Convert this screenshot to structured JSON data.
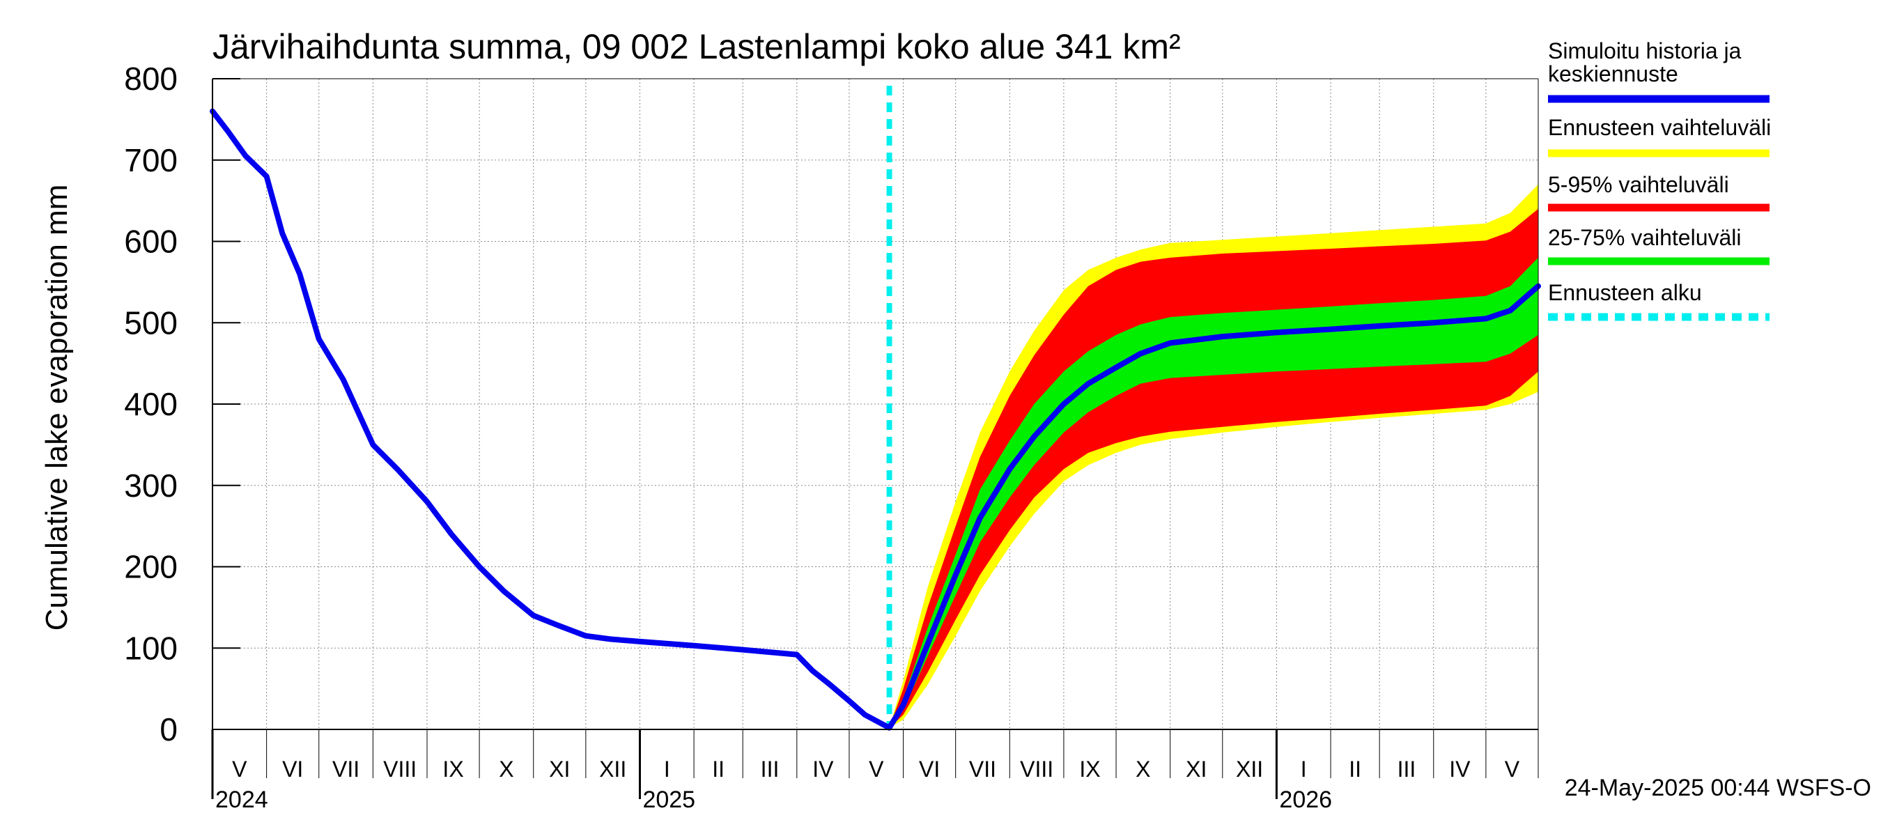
{
  "chart_data": {
    "type": "area",
    "title": "Järvihaihdunta summa, 09 002 Lastenlampi koko alue 341 km²",
    "ylabel": "Cumulative lake evaporation   mm",
    "xlabel": "",
    "ylim": [
      0,
      800
    ],
    "yticks": [
      0,
      100,
      200,
      300,
      400,
      500,
      600,
      700,
      800
    ],
    "grid": true,
    "timestamp": "24-May-2025 00:44 WSFS-O",
    "x_range": [
      "2024-05-01",
      "2026-05-31"
    ],
    "forecast_start": "2025-05-24",
    "month_labels": [
      {
        "label": "V",
        "date": "2024-05-01"
      },
      {
        "label": "VI",
        "date": "2024-06-01"
      },
      {
        "label": "VII",
        "date": "2024-07-01"
      },
      {
        "label": "VIII",
        "date": "2024-08-01"
      },
      {
        "label": "IX",
        "date": "2024-09-01"
      },
      {
        "label": "X",
        "date": "2024-10-01"
      },
      {
        "label": "XI",
        "date": "2024-11-01"
      },
      {
        "label": "XII",
        "date": "2024-12-01"
      },
      {
        "label": "I",
        "date": "2025-01-01"
      },
      {
        "label": "II",
        "date": "2025-02-01"
      },
      {
        "label": "III",
        "date": "2025-03-01"
      },
      {
        "label": "IV",
        "date": "2025-04-01"
      },
      {
        "label": "V",
        "date": "2025-05-01"
      },
      {
        "label": "VI",
        "date": "2025-06-01"
      },
      {
        "label": "VII",
        "date": "2025-07-01"
      },
      {
        "label": "VIII",
        "date": "2025-08-01"
      },
      {
        "label": "IX",
        "date": "2025-09-01"
      },
      {
        "label": "X",
        "date": "2025-10-01"
      },
      {
        "label": "XI",
        "date": "2025-11-01"
      },
      {
        "label": "XII",
        "date": "2025-12-01"
      },
      {
        "label": "I",
        "date": "2026-01-01"
      },
      {
        "label": "II",
        "date": "2026-02-01"
      },
      {
        "label": "III",
        "date": "2026-03-01"
      },
      {
        "label": "IV",
        "date": "2026-04-01"
      },
      {
        "label": "V",
        "date": "2026-05-01"
      }
    ],
    "year_labels": [
      {
        "label": "2024",
        "date": "2024-05-01"
      },
      {
        "label": "2025",
        "date": "2025-01-01"
      },
      {
        "label": "2026",
        "date": "2026-01-01"
      }
    ],
    "legend": [
      {
        "label": "Simuloitu historia ja",
        "label2": "keskiennuste",
        "color": "#0000ee",
        "style": "solid"
      },
      {
        "label": "Ennusteen vaihteluväli",
        "color": "#ffff00",
        "style": "solid"
      },
      {
        "label": "5-95% vaihteluväli",
        "color": "#ff0000",
        "style": "solid"
      },
      {
        "label": "25-75% vaihteluväli",
        "color": "#00ee00",
        "style": "solid"
      },
      {
        "label": "Ennusteen alku",
        "color": "#00eeee",
        "style": "dashed"
      }
    ],
    "history": {
      "x": [
        "2024-05-01",
        "2024-05-10",
        "2024-05-20",
        "2024-06-01",
        "2024-06-10",
        "2024-06-20",
        "2024-07-01",
        "2024-07-15",
        "2024-08-01",
        "2024-08-15",
        "2024-09-01",
        "2024-09-15",
        "2024-10-01",
        "2024-10-15",
        "2024-11-01",
        "2024-11-15",
        "2024-12-01",
        "2024-12-15",
        "2025-01-01",
        "2025-02-01",
        "2025-03-01",
        "2025-04-01",
        "2025-04-10",
        "2025-04-20",
        "2025-05-01",
        "2025-05-10",
        "2025-05-24"
      ],
      "values": [
        760,
        735,
        705,
        680,
        610,
        560,
        480,
        430,
        350,
        320,
        280,
        240,
        200,
        170,
        140,
        128,
        115,
        111,
        108,
        103,
        98,
        92,
        72,
        55,
        35,
        18,
        2
      ]
    },
    "bands": {
      "x": [
        "2025-05-24",
        "2025-06-01",
        "2025-06-15",
        "2025-07-01",
        "2025-07-15",
        "2025-08-01",
        "2025-08-15",
        "2025-09-01",
        "2025-09-15",
        "2025-10-01",
        "2025-10-15",
        "2025-11-01",
        "2025-12-01",
        "2026-01-01",
        "2026-02-01",
        "2026-03-01",
        "2026-04-01",
        "2026-05-01",
        "2026-05-15",
        "2026-05-31"
      ],
      "mean": [
        2,
        30,
        105,
        190,
        260,
        320,
        360,
        400,
        425,
        445,
        462,
        475,
        483,
        488,
        492,
        496,
        500,
        505,
        515,
        545
      ],
      "p25": [
        2,
        24,
        90,
        165,
        230,
        285,
        325,
        365,
        390,
        410,
        425,
        432,
        436,
        440,
        443,
        446,
        449,
        452,
        462,
        485
      ],
      "p75": [
        2,
        38,
        125,
        215,
        295,
        355,
        400,
        440,
        465,
        485,
        498,
        507,
        512,
        516,
        520,
        524,
        528,
        533,
        545,
        580
      ],
      "p5": [
        2,
        18,
        70,
        135,
        190,
        245,
        285,
        320,
        340,
        352,
        360,
        366,
        372,
        378,
        383,
        388,
        393,
        398,
        410,
        440
      ],
      "p95": [
        2,
        50,
        150,
        250,
        335,
        410,
        460,
        510,
        545,
        565,
        575,
        580,
        585,
        588,
        591,
        594,
        597,
        601,
        612,
        640
      ],
      "min": [
        2,
        12,
        55,
        115,
        170,
        225,
        265,
        305,
        325,
        340,
        350,
        357,
        365,
        372,
        378,
        383,
        388,
        393,
        400,
        415
      ],
      "max": [
        2,
        60,
        175,
        280,
        365,
        440,
        490,
        540,
        565,
        580,
        590,
        598,
        602,
        606,
        610,
        614,
        618,
        622,
        635,
        670
      ]
    }
  }
}
